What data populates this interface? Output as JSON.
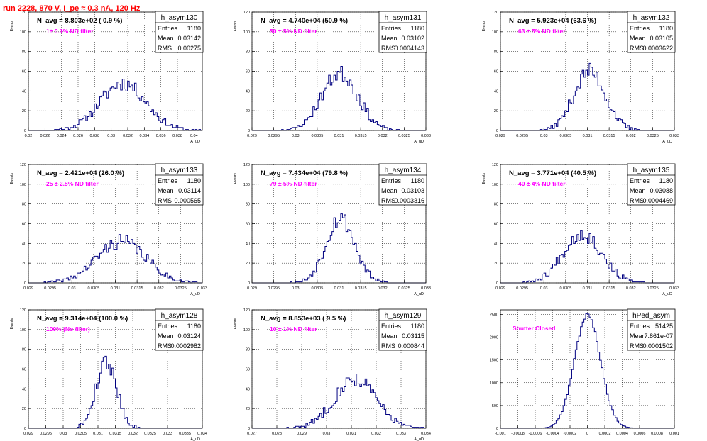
{
  "header": {
    "title": "run 2228,   870 V, I_pe ≈ 0.3 nA, 120 Hz"
  },
  "chart_data": [
    {
      "type": "histogram",
      "name": "h_asym130",
      "title_text": "N_avg = 8.803e+02 ( 0.9 %)",
      "filter_label": "1± 0.1% ND filter",
      "stats": {
        "Entries": "1180",
        "Mean": "0.03142",
        "RMS": "0.00275"
      },
      "xlabel": "A_uD",
      "ylabel": "Events",
      "xlim": [
        0.02,
        0.041
      ],
      "ylim": [
        0,
        120
      ],
      "xticks": [
        0.02,
        0.022,
        0.024,
        0.026,
        0.028,
        0.03,
        0.032,
        0.034,
        0.036,
        0.038,
        0.04
      ],
      "xtick_labels": [
        "0.02",
        "0.022",
        "0.024",
        "0.026",
        "0.028",
        "0.03",
        "0.032",
        "0.034",
        "0.036",
        "0.038",
        "0.04"
      ],
      "yticks": [
        0,
        20,
        40,
        60,
        80,
        100,
        120
      ],
      "shape": {
        "mean": 0.03142,
        "sigma": 0.00275,
        "peak": 48,
        "bins": 100,
        "seed": 11
      }
    },
    {
      "type": "histogram",
      "name": "h_asym131",
      "title_text": "N_avg = 4.740e+04 (50.9 %)",
      "filter_label": "50 ± 5% ND filter",
      "stats": {
        "Entries": "1180",
        "Mean": "0.03102",
        "RMS": "0.0004143"
      },
      "xlabel": "A_uD",
      "ylabel": "Events",
      "xlim": [
        0.029,
        0.033
      ],
      "ylim": [
        0,
        120
      ],
      "xticks": [
        0.029,
        0.0295,
        0.03,
        0.0305,
        0.031,
        0.0315,
        0.032,
        0.0325,
        0.033
      ],
      "xtick_labels": [
        "0.029",
        "0.0295",
        "0.03",
        "0.0305",
        "0.031",
        "0.0315",
        "0.032",
        "0.0325",
        "0.033"
      ],
      "yticks": [
        0,
        20,
        40,
        60,
        80,
        100,
        120
      ],
      "shape": {
        "mean": 0.03102,
        "sigma": 0.0004143,
        "peak": 58,
        "bins": 100,
        "seed": 23
      }
    },
    {
      "type": "histogram",
      "name": "h_asym132",
      "title_text": "N_avg = 5.923e+04 (63.6 %)",
      "filter_label": "63 ± 5% ND filter",
      "stats": {
        "Entries": "1180",
        "Mean": "0.03105",
        "RMS": "0.0003622"
      },
      "xlabel": "A_uD",
      "ylabel": "Events",
      "xlim": [
        0.029,
        0.033
      ],
      "ylim": [
        0,
        120
      ],
      "xticks": [
        0.029,
        0.0295,
        0.03,
        0.0305,
        0.031,
        0.0315,
        0.032,
        0.0325,
        0.033
      ],
      "xtick_labels": [
        "0.029",
        "0.0295",
        "0.03",
        "0.0305",
        "0.031",
        "0.0315",
        "0.032",
        "0.0325",
        "0.033"
      ],
      "yticks": [
        0,
        20,
        40,
        60,
        80,
        100,
        120
      ],
      "shape": {
        "mean": 0.03105,
        "sigma": 0.0003622,
        "peak": 60,
        "bins": 100,
        "seed": 37
      }
    },
    {
      "type": "histogram",
      "name": "h_asym133",
      "title_text": "N_avg = 2.421e+04 (26.0 %)",
      "filter_label": "25 ± 2.5% ND filter",
      "stats": {
        "Entries": "1180",
        "Mean": "0.03114",
        "RMS": "0.000565"
      },
      "xlabel": "A_uD",
      "ylabel": "Events",
      "xlim": [
        0.029,
        0.033
      ],
      "ylim": [
        0,
        120
      ],
      "xticks": [
        0.029,
        0.0295,
        0.03,
        0.0305,
        0.031,
        0.0315,
        0.032,
        0.0325,
        0.033
      ],
      "xtick_labels": [
        "0.029",
        "0.0295",
        "0.03",
        "0.0305",
        "0.031",
        "0.0315",
        "0.032",
        "0.0325",
        "0.033"
      ],
      "yticks": [
        0,
        20,
        40,
        60,
        80,
        100,
        120
      ],
      "shape": {
        "mean": 0.03114,
        "sigma": 0.000565,
        "peak": 42,
        "bins": 100,
        "seed": 41
      }
    },
    {
      "type": "histogram",
      "name": "h_asym134",
      "title_text": "N_avg = 7.434e+04 (79.8 %)",
      "filter_label": "79 ± 5% ND filter",
      "stats": {
        "Entries": "1180",
        "Mean": "0.03103",
        "RMS": "0.0003316"
      },
      "xlabel": "A_uD",
      "ylabel": "Events",
      "xlim": [
        0.029,
        0.033
      ],
      "ylim": [
        0,
        120
      ],
      "xticks": [
        0.029,
        0.0295,
        0.03,
        0.0305,
        0.031,
        0.0315,
        0.032,
        0.0325,
        0.033
      ],
      "xtick_labels": [
        "0.029",
        "0.0295",
        "0.03",
        "0.0305",
        "0.031",
        "0.0315",
        "0.032",
        "0.0325",
        "0.033"
      ],
      "yticks": [
        0,
        20,
        40,
        60,
        80,
        100,
        120
      ],
      "shape": {
        "mean": 0.03103,
        "sigma": 0.0003316,
        "peak": 66,
        "bins": 100,
        "seed": 53
      }
    },
    {
      "type": "histogram",
      "name": "h_asym135",
      "title_text": "N_avg = 3.771e+04 (40.5 %)",
      "filter_label": "40 ± 4% ND filter",
      "stats": {
        "Entries": "1180",
        "Mean": "0.03088",
        "RMS": "0.0004469"
      },
      "xlabel": "A_uD",
      "ylabel": "Events",
      "xlim": [
        0.029,
        0.033
      ],
      "ylim": [
        0,
        120
      ],
      "xticks": [
        0.029,
        0.0295,
        0.03,
        0.0305,
        0.031,
        0.0315,
        0.032,
        0.0325,
        0.033
      ],
      "xtick_labels": [
        "0.029",
        "0.0295",
        "0.03",
        "0.0305",
        "0.031",
        "0.0315",
        "0.032",
        "0.0325",
        "0.033"
      ],
      "yticks": [
        0,
        20,
        40,
        60,
        80,
        100,
        120
      ],
      "shape": {
        "mean": 0.03088,
        "sigma": 0.0004469,
        "peak": 50,
        "bins": 100,
        "seed": 67
      }
    },
    {
      "type": "histogram",
      "name": "h_asym128",
      "title_text": "N_avg = 9.314e+04 (100.0 %)",
      "filter_label": "100% (No filter)",
      "stats": {
        "Entries": "1180",
        "Mean": "0.03124",
        "RMS": "0.0002982"
      },
      "xlabel": "A_uD",
      "ylabel": "Events",
      "xlim": [
        0.029,
        0.034
      ],
      "ylim": [
        0,
        120
      ],
      "xticks": [
        0.029,
        0.0295,
        0.03,
        0.0305,
        0.031,
        0.0315,
        0.032,
        0.0325,
        0.033,
        0.0335,
        0.034
      ],
      "xtick_labels": [
        "0.029",
        "0.0295",
        "0.03",
        "0.0305",
        "0.031",
        "0.0315",
        "0.032",
        "0.0325",
        "0.033",
        "0.0335",
        "0.034"
      ],
      "yticks": [
        0,
        20,
        40,
        60,
        80,
        100,
        120
      ],
      "shape": {
        "mean": 0.03124,
        "sigma": 0.0002982,
        "peak": 68,
        "bins": 100,
        "seed": 79
      }
    },
    {
      "type": "histogram",
      "name": "h_asym129",
      "title_text": "N_avg = 8.853e+03 ( 9.5 %)",
      "filter_label": "10 ± 1% ND filter",
      "stats": {
        "Entries": "1180",
        "Mean": "0.03115",
        "RMS": "0.000844"
      },
      "xlabel": "A_uD",
      "ylabel": "Events",
      "xlim": [
        0.027,
        0.034
      ],
      "ylim": [
        0,
        120
      ],
      "xticks": [
        0.027,
        0.028,
        0.029,
        0.03,
        0.031,
        0.032,
        0.033,
        0.034
      ],
      "xtick_labels": [
        "0.027",
        "0.028",
        "0.029",
        "0.03",
        "0.031",
        "0.032",
        "0.033",
        "0.034"
      ],
      "yticks": [
        0,
        20,
        40,
        60,
        80,
        100,
        120
      ],
      "shape": {
        "mean": 0.03115,
        "sigma": 0.000844,
        "peak": 50,
        "bins": 100,
        "seed": 83
      }
    },
    {
      "type": "histogram",
      "name": "hPed_asym",
      "title_text": "",
      "filter_label": "Shutter Closed",
      "stats": {
        "Entries": "51425",
        "Mean": "7.861e-07",
        "RMS": "0.0001502"
      },
      "xlabel": "",
      "ylabel": "",
      "xlim": [
        -0.001,
        0.001
      ],
      "ylim": [
        0,
        2600
      ],
      "xticks": [
        -0.001,
        -0.0008,
        -0.0006,
        -0.0004,
        -0.0002,
        0,
        0.0002,
        0.0004,
        0.0006,
        0.0008,
        0.001
      ],
      "xtick_labels": [
        "-0.001",
        "-0.0008",
        "-0.0006",
        "-0.0004",
        "-0.0002",
        "0",
        "0.0002",
        "0.0004",
        "0.0006",
        "0.0008",
        "0.001"
      ],
      "yticks": [
        0,
        500,
        1000,
        1500,
        2000,
        2500
      ],
      "shape": {
        "mean": 8e-07,
        "sigma": 0.0001502,
        "peak": 2480,
        "bins": 100,
        "seed": 97
      }
    }
  ],
  "colors": {
    "title": "#ff0000",
    "filter_label": "#ff00ff",
    "histogram": "#000080",
    "grid": "#000000",
    "frame": "#000000"
  }
}
